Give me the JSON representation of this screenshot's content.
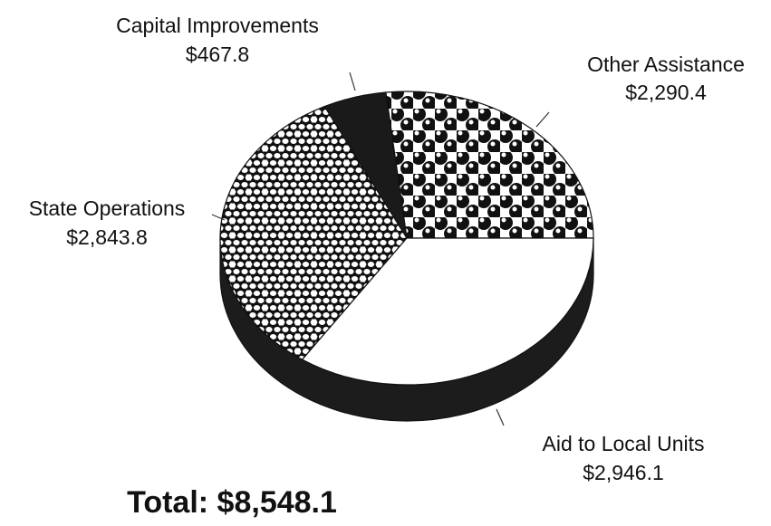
{
  "chart_data": {
    "type": "pie",
    "title": "Total: $8,548.1",
    "categories": [
      "Other Assistance",
      "Capital Improvements",
      "State Operations",
      "Aid to Local Units"
    ],
    "values": [
      2290.4,
      467.8,
      2843.8,
      2946.1
    ],
    "value_labels": [
      "$2,290.4",
      "$467.8",
      "$2,843.8",
      "$2,946.1"
    ]
  }
}
